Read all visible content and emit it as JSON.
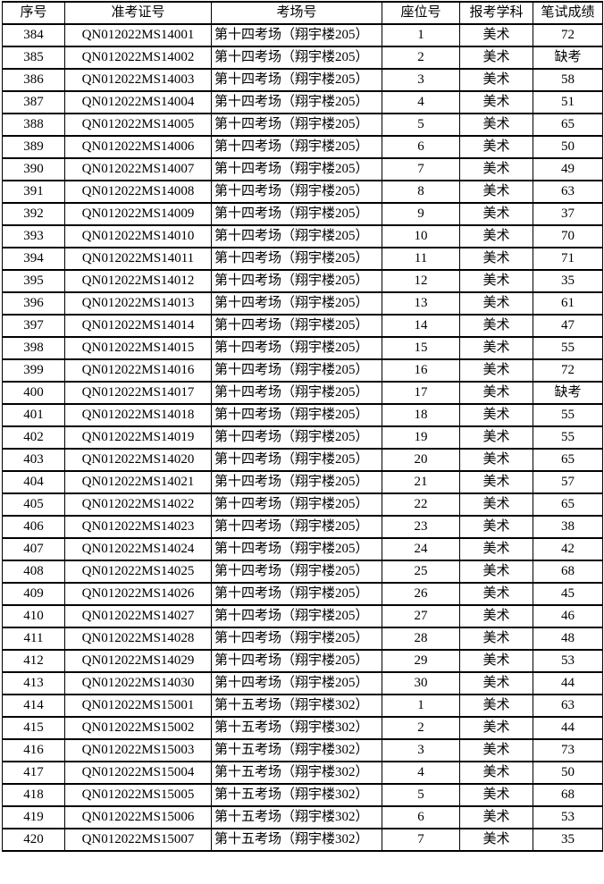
{
  "table": {
    "columns": [
      {
        "key": "index",
        "label": "序号"
      },
      {
        "key": "ticket",
        "label": "准考证号"
      },
      {
        "key": "room",
        "label": "考场号"
      },
      {
        "key": "seat",
        "label": "座位号"
      },
      {
        "key": "subject",
        "label": "报考学科"
      },
      {
        "key": "score",
        "label": "笔试成绩"
      }
    ],
    "absent_label": "缺考",
    "rows": [
      [
        "384",
        "QN012022MS14001",
        "第十四考场（翔宇楼205）",
        "1",
        "美术",
        "72"
      ],
      [
        "385",
        "QN012022MS14002",
        "第十四考场（翔宇楼205）",
        "2",
        "美术",
        "缺考"
      ],
      [
        "386",
        "QN012022MS14003",
        "第十四考场（翔宇楼205）",
        "3",
        "美术",
        "58"
      ],
      [
        "387",
        "QN012022MS14004",
        "第十四考场（翔宇楼205）",
        "4",
        "美术",
        "51"
      ],
      [
        "388",
        "QN012022MS14005",
        "第十四考场（翔宇楼205）",
        "5",
        "美术",
        "65"
      ],
      [
        "389",
        "QN012022MS14006",
        "第十四考场（翔宇楼205）",
        "6",
        "美术",
        "50"
      ],
      [
        "390",
        "QN012022MS14007",
        "第十四考场（翔宇楼205）",
        "7",
        "美术",
        "49"
      ],
      [
        "391",
        "QN012022MS14008",
        "第十四考场（翔宇楼205）",
        "8",
        "美术",
        "63"
      ],
      [
        "392",
        "QN012022MS14009",
        "第十四考场（翔宇楼205）",
        "9",
        "美术",
        "37"
      ],
      [
        "393",
        "QN012022MS14010",
        "第十四考场（翔宇楼205）",
        "10",
        "美术",
        "70"
      ],
      [
        "394",
        "QN012022MS14011",
        "第十四考场（翔宇楼205）",
        "11",
        "美术",
        "71"
      ],
      [
        "395",
        "QN012022MS14012",
        "第十四考场（翔宇楼205）",
        "12",
        "美术",
        "35"
      ],
      [
        "396",
        "QN012022MS14013",
        "第十四考场（翔宇楼205）",
        "13",
        "美术",
        "61"
      ],
      [
        "397",
        "QN012022MS14014",
        "第十四考场（翔宇楼205）",
        "14",
        "美术",
        "47"
      ],
      [
        "398",
        "QN012022MS14015",
        "第十四考场（翔宇楼205）",
        "15",
        "美术",
        "55"
      ],
      [
        "399",
        "QN012022MS14016",
        "第十四考场（翔宇楼205）",
        "16",
        "美术",
        "72"
      ],
      [
        "400",
        "QN012022MS14017",
        "第十四考场（翔宇楼205）",
        "17",
        "美术",
        "缺考"
      ],
      [
        "401",
        "QN012022MS14018",
        "第十四考场（翔宇楼205）",
        "18",
        "美术",
        "55"
      ],
      [
        "402",
        "QN012022MS14019",
        "第十四考场（翔宇楼205）",
        "19",
        "美术",
        "55"
      ],
      [
        "403",
        "QN012022MS14020",
        "第十四考场（翔宇楼205）",
        "20",
        "美术",
        "65"
      ],
      [
        "404",
        "QN012022MS14021",
        "第十四考场（翔宇楼205）",
        "21",
        "美术",
        "57"
      ],
      [
        "405",
        "QN012022MS14022",
        "第十四考场（翔宇楼205）",
        "22",
        "美术",
        "65"
      ],
      [
        "406",
        "QN012022MS14023",
        "第十四考场（翔宇楼205）",
        "23",
        "美术",
        "38"
      ],
      [
        "407",
        "QN012022MS14024",
        "第十四考场（翔宇楼205）",
        "24",
        "美术",
        "42"
      ],
      [
        "408",
        "QN012022MS14025",
        "第十四考场（翔宇楼205）",
        "25",
        "美术",
        "68"
      ],
      [
        "409",
        "QN012022MS14026",
        "第十四考场（翔宇楼205）",
        "26",
        "美术",
        "45"
      ],
      [
        "410",
        "QN012022MS14027",
        "第十四考场（翔宇楼205）",
        "27",
        "美术",
        "46"
      ],
      [
        "411",
        "QN012022MS14028",
        "第十四考场（翔宇楼205）",
        "28",
        "美术",
        "48"
      ],
      [
        "412",
        "QN012022MS14029",
        "第十四考场（翔宇楼205）",
        "29",
        "美术",
        "53"
      ],
      [
        "413",
        "QN012022MS14030",
        "第十四考场（翔宇楼205）",
        "30",
        "美术",
        "44"
      ],
      [
        "414",
        "QN012022MS15001",
        "第十五考场（翔宇楼302）",
        "1",
        "美术",
        "63"
      ],
      [
        "415",
        "QN012022MS15002",
        "第十五考场（翔宇楼302）",
        "2",
        "美术",
        "44"
      ],
      [
        "416",
        "QN012022MS15003",
        "第十五考场（翔宇楼302）",
        "3",
        "美术",
        "73"
      ],
      [
        "417",
        "QN012022MS15004",
        "第十五考场（翔宇楼302）",
        "4",
        "美术",
        "50"
      ],
      [
        "418",
        "QN012022MS15005",
        "第十五考场（翔宇楼302）",
        "5",
        "美术",
        "68"
      ],
      [
        "419",
        "QN012022MS15006",
        "第十五考场（翔宇楼302）",
        "6",
        "美术",
        "53"
      ],
      [
        "420",
        "QN012022MS15007",
        "第十五考场（翔宇楼302）",
        "7",
        "美术",
        "35"
      ]
    ]
  }
}
